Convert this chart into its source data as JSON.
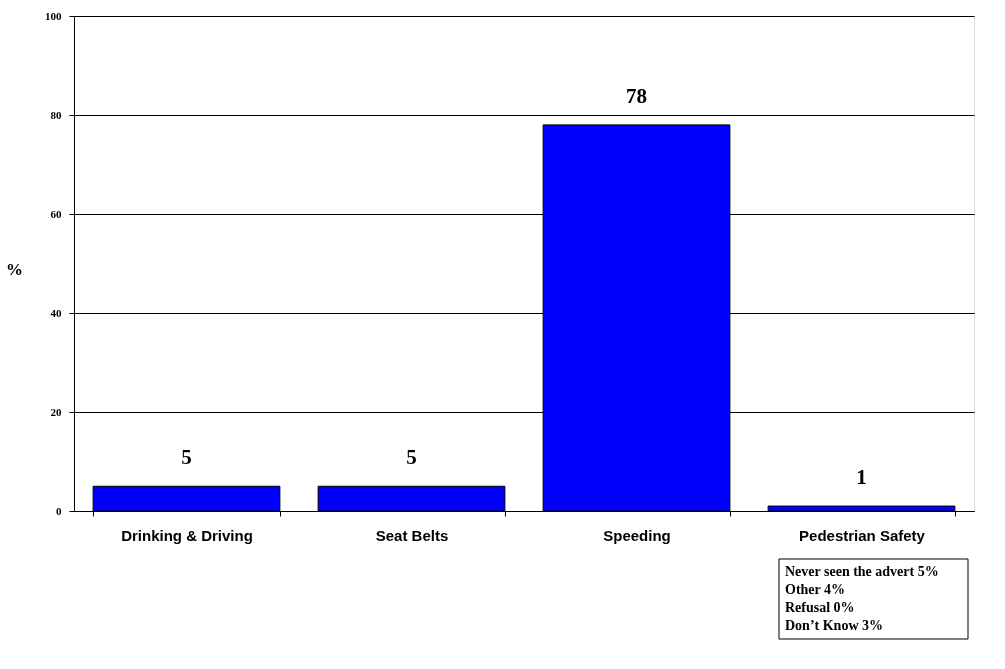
{
  "chart_data": {
    "type": "bar",
    "categories": [
      "Drinking & Driving",
      "Seat Belts",
      "Speeding",
      "Pedestrian Safety"
    ],
    "values": [
      5,
      5,
      78,
      1
    ],
    "color": "#0000ff",
    "ylabel": "%",
    "ylim": [
      0,
      100
    ],
    "yticks": [
      0,
      20,
      40,
      60,
      80,
      100
    ],
    "grid": "y",
    "data_labels": true,
    "annotations": [
      "Never seen the advert 5%",
      "Other 4%",
      "Refusal 0%",
      "Don’t Know 3%"
    ]
  }
}
